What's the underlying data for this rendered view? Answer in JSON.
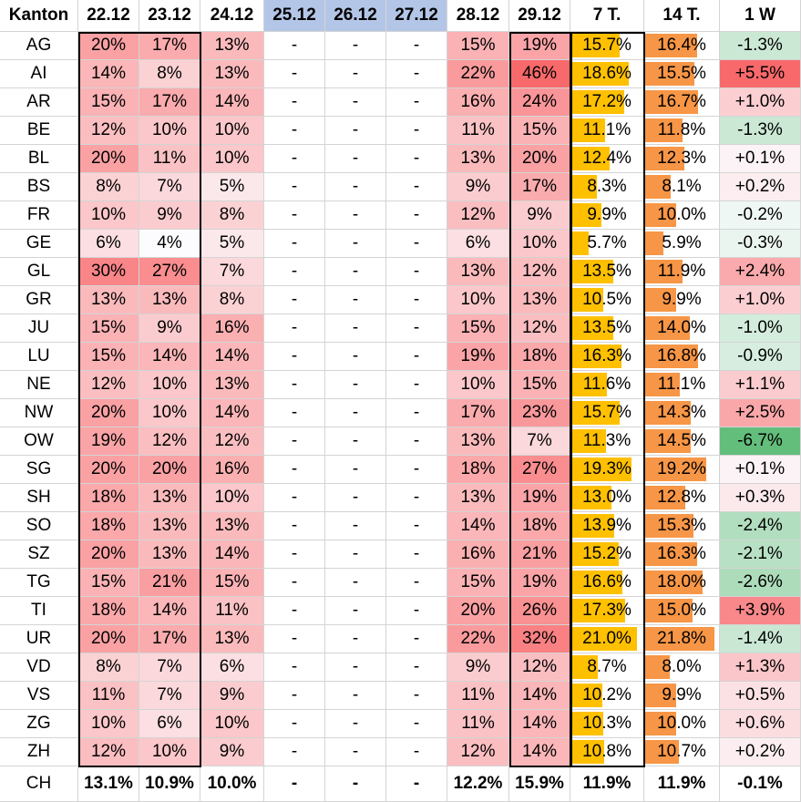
{
  "header": {
    "kanton": "Kanton",
    "days": [
      "22.12",
      "23.12",
      "24.12",
      "25.12",
      "26.12",
      "27.12",
      "28.12",
      "29.12"
    ],
    "avg7": "7 T.",
    "avg14": "14 T.",
    "w1": "1 W"
  },
  "colors": {
    "heat_max": "#f8696b",
    "heat_min": "#fcfcff",
    "bar7": "#ffc000",
    "bar14": "#f79646",
    "pos_max": "#f8696b",
    "neg_max": "#63be7b",
    "holiday_header": "#b4c6e7"
  },
  "rows": [
    {
      "kanton": "AG",
      "days": [
        "20%",
        "17%",
        "13%",
        "-",
        "-",
        "-",
        "15%",
        "19%"
      ],
      "avg7": "15.7%",
      "avg14": "16.4%",
      "w1": "-1.3%"
    },
    {
      "kanton": "AI",
      "days": [
        "14%",
        "8%",
        "13%",
        "-",
        "-",
        "-",
        "22%",
        "46%"
      ],
      "avg7": "18.6%",
      "avg14": "15.5%",
      "w1": "+5.5%"
    },
    {
      "kanton": "AR",
      "days": [
        "15%",
        "17%",
        "14%",
        "-",
        "-",
        "-",
        "16%",
        "24%"
      ],
      "avg7": "17.2%",
      "avg14": "16.7%",
      "w1": "+1.0%"
    },
    {
      "kanton": "BE",
      "days": [
        "12%",
        "10%",
        "10%",
        "-",
        "-",
        "-",
        "11%",
        "15%"
      ],
      "avg7": "11.1%",
      "avg14": "11.8%",
      "w1": "-1.3%"
    },
    {
      "kanton": "BL",
      "days": [
        "20%",
        "11%",
        "10%",
        "-",
        "-",
        "-",
        "13%",
        "20%"
      ],
      "avg7": "12.4%",
      "avg14": "12.3%",
      "w1": "+0.1%"
    },
    {
      "kanton": "BS",
      "days": [
        "8%",
        "7%",
        "5%",
        "-",
        "-",
        "-",
        "9%",
        "17%"
      ],
      "avg7": "8.3%",
      "avg14": "8.1%",
      "w1": "+0.2%"
    },
    {
      "kanton": "FR",
      "days": [
        "10%",
        "9%",
        "8%",
        "-",
        "-",
        "-",
        "12%",
        "9%"
      ],
      "avg7": "9.9%",
      "avg14": "10.0%",
      "w1": "-0.2%"
    },
    {
      "kanton": "GE",
      "days": [
        "6%",
        "4%",
        "5%",
        "-",
        "-",
        "-",
        "6%",
        "10%"
      ],
      "avg7": "5.7%",
      "avg14": "5.9%",
      "w1": "-0.3%"
    },
    {
      "kanton": "GL",
      "days": [
        "30%",
        "27%",
        "7%",
        "-",
        "-",
        "-",
        "13%",
        "12%"
      ],
      "avg7": "13.5%",
      "avg14": "11.9%",
      "w1": "+2.4%"
    },
    {
      "kanton": "GR",
      "days": [
        "13%",
        "13%",
        "8%",
        "-",
        "-",
        "-",
        "10%",
        "13%"
      ],
      "avg7": "10.5%",
      "avg14": "9.9%",
      "w1": "+1.0%"
    },
    {
      "kanton": "JU",
      "days": [
        "15%",
        "9%",
        "16%",
        "-",
        "-",
        "-",
        "15%",
        "12%"
      ],
      "avg7": "13.5%",
      "avg14": "14.0%",
      "w1": "-1.0%"
    },
    {
      "kanton": "LU",
      "days": [
        "15%",
        "14%",
        "14%",
        "-",
        "-",
        "-",
        "19%",
        "18%"
      ],
      "avg7": "16.3%",
      "avg14": "16.8%",
      "w1": "-0.9%"
    },
    {
      "kanton": "NE",
      "days": [
        "12%",
        "10%",
        "13%",
        "-",
        "-",
        "-",
        "10%",
        "15%"
      ],
      "avg7": "11.6%",
      "avg14": "11.1%",
      "w1": "+1.1%"
    },
    {
      "kanton": "NW",
      "days": [
        "20%",
        "10%",
        "14%",
        "-",
        "-",
        "-",
        "17%",
        "23%"
      ],
      "avg7": "15.7%",
      "avg14": "14.3%",
      "w1": "+2.5%"
    },
    {
      "kanton": "OW",
      "days": [
        "19%",
        "12%",
        "12%",
        "-",
        "-",
        "-",
        "13%",
        "7%"
      ],
      "avg7": "11.3%",
      "avg14": "14.5%",
      "w1": "-6.7%"
    },
    {
      "kanton": "SG",
      "days": [
        "20%",
        "20%",
        "16%",
        "-",
        "-",
        "-",
        "18%",
        "27%"
      ],
      "avg7": "19.3%",
      "avg14": "19.2%",
      "w1": "+0.1%"
    },
    {
      "kanton": "SH",
      "days": [
        "18%",
        "13%",
        "10%",
        "-",
        "-",
        "-",
        "13%",
        "19%"
      ],
      "avg7": "13.0%",
      "avg14": "12.8%",
      "w1": "+0.3%"
    },
    {
      "kanton": "SO",
      "days": [
        "18%",
        "13%",
        "13%",
        "-",
        "-",
        "-",
        "14%",
        "18%"
      ],
      "avg7": "13.9%",
      "avg14": "15.3%",
      "w1": "-2.4%"
    },
    {
      "kanton": "SZ",
      "days": [
        "20%",
        "13%",
        "14%",
        "-",
        "-",
        "-",
        "16%",
        "21%"
      ],
      "avg7": "15.2%",
      "avg14": "16.3%",
      "w1": "-2.1%"
    },
    {
      "kanton": "TG",
      "days": [
        "15%",
        "21%",
        "15%",
        "-",
        "-",
        "-",
        "15%",
        "19%"
      ],
      "avg7": "16.6%",
      "avg14": "18.0%",
      "w1": "-2.6%"
    },
    {
      "kanton": "TI",
      "days": [
        "18%",
        "14%",
        "11%",
        "-",
        "-",
        "-",
        "20%",
        "26%"
      ],
      "avg7": "17.3%",
      "avg14": "15.0%",
      "w1": "+3.9%"
    },
    {
      "kanton": "UR",
      "days": [
        "20%",
        "17%",
        "13%",
        "-",
        "-",
        "-",
        "22%",
        "32%"
      ],
      "avg7": "21.0%",
      "avg14": "21.8%",
      "w1": "-1.4%"
    },
    {
      "kanton": "VD",
      "days": [
        "8%",
        "7%",
        "6%",
        "-",
        "-",
        "-",
        "9%",
        "12%"
      ],
      "avg7": "8.7%",
      "avg14": "8.0%",
      "w1": "+1.3%"
    },
    {
      "kanton": "VS",
      "days": [
        "11%",
        "7%",
        "9%",
        "-",
        "-",
        "-",
        "11%",
        "14%"
      ],
      "avg7": "10.2%",
      "avg14": "9.9%",
      "w1": "+0.5%"
    },
    {
      "kanton": "ZG",
      "days": [
        "10%",
        "6%",
        "10%",
        "-",
        "-",
        "-",
        "11%",
        "14%"
      ],
      "avg7": "10.3%",
      "avg14": "10.0%",
      "w1": "+0.6%"
    },
    {
      "kanton": "ZH",
      "days": [
        "12%",
        "10%",
        "9%",
        "-",
        "-",
        "-",
        "12%",
        "14%"
      ],
      "avg7": "10.8%",
      "avg14": "10.7%",
      "w1": "+0.2%"
    }
  ],
  "total": {
    "kanton": "CH",
    "days": [
      "13.1%",
      "10.9%",
      "10.0%",
      "-",
      "-",
      "-",
      "12.2%",
      "15.9%"
    ],
    "avg7": "11.9%",
    "avg14": "11.9%",
    "w1": "-0.1%"
  }
}
